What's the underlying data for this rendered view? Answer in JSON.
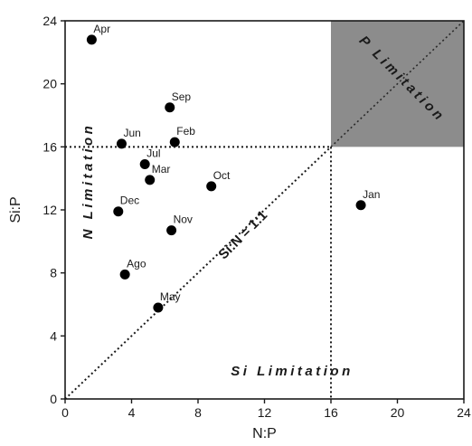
{
  "chart_data": {
    "type": "scatter",
    "title": "",
    "xlabel": "N:P",
    "ylabel": "Si:P",
    "xlim": [
      0,
      24
    ],
    "ylim": [
      0,
      24
    ],
    "xticks": [
      "0",
      "4",
      "8",
      "12",
      "16",
      "20",
      "24"
    ],
    "yticks": [
      "0",
      "4",
      "8",
      "12",
      "16",
      "20",
      "24"
    ],
    "grid": false,
    "points": [
      {
        "label": "Apr",
        "x": 1.6,
        "y": 22.8
      },
      {
        "label": "Sep",
        "x": 6.3,
        "y": 18.5
      },
      {
        "label": "Jun",
        "x": 3.4,
        "y": 16.2
      },
      {
        "label": "Feb",
        "x": 6.6,
        "y": 16.3
      },
      {
        "label": "Jul",
        "x": 4.8,
        "y": 14.9
      },
      {
        "label": "Mar",
        "x": 5.1,
        "y": 13.9
      },
      {
        "label": "Oct",
        "x": 8.8,
        "y": 13.5
      },
      {
        "label": "Dec",
        "x": 3.2,
        "y": 11.9
      },
      {
        "label": "Nov",
        "x": 6.4,
        "y": 10.7
      },
      {
        "label": "Jan",
        "x": 17.8,
        "y": 12.3
      },
      {
        "label": "Ago",
        "x": 3.6,
        "y": 7.9
      },
      {
        "label": "May",
        "x": 5.6,
        "y": 5.8
      }
    ],
    "reference_lines": {
      "ratio_label": "Si:N = 1:1",
      "threshold": 16
    },
    "regions": {
      "n_limitation": "N Limitation",
      "p_limitation": "P Limitation",
      "si_limitation": "Si Limitation",
      "p_limitation_fill": "#8c8c8c"
    },
    "marker_color": "#000000"
  }
}
